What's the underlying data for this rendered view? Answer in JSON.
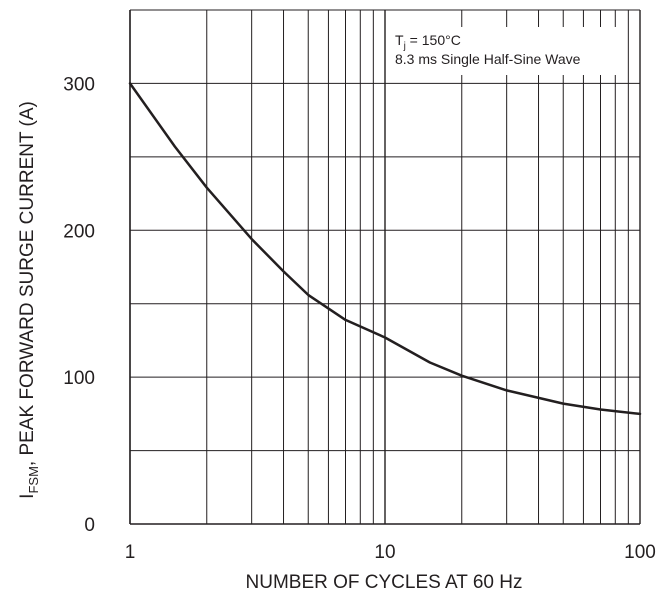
{
  "chart_data": {
    "type": "line",
    "x_scale": "log",
    "xlim": [
      1,
      100
    ],
    "ylim": [
      0,
      350
    ],
    "grid": true,
    "xlabel": "NUMBER OF CYCLES AT 60 Hz",
    "ylabel": {
      "symbol": "I",
      "subscript": "FSM",
      "text": ", PEAK FORWARD SURGE CURRENT (A)"
    },
    "x_tick_labels": [
      {
        "value": 1,
        "label": "1"
      },
      {
        "value": 10,
        "label": "10"
      },
      {
        "value": 100,
        "label": "100"
      }
    ],
    "y_tick_labels": [
      {
        "value": 0,
        "label": "0"
      },
      {
        "value": 100,
        "label": "100"
      },
      {
        "value": 200,
        "label": "200"
      },
      {
        "value": 300,
        "label": "300"
      }
    ],
    "annotation": {
      "line1_prefix": "T",
      "line1_subscript": "j",
      "line1_suffix": " = 150°C",
      "line2": "8.3 ms Single Half-Sine Wave"
    },
    "series": [
      {
        "x": [
          1,
          1.5,
          2,
          3,
          4,
          5,
          7,
          10,
          15,
          20,
          30,
          50,
          70,
          100
        ],
        "y": [
          300,
          257,
          229,
          194,
          172,
          156,
          139,
          127,
          110,
          101,
          91,
          82,
          78,
          75
        ]
      }
    ],
    "colors": {
      "line": "#231f20",
      "grid": "#231f20",
      "background": "#ffffff"
    }
  }
}
